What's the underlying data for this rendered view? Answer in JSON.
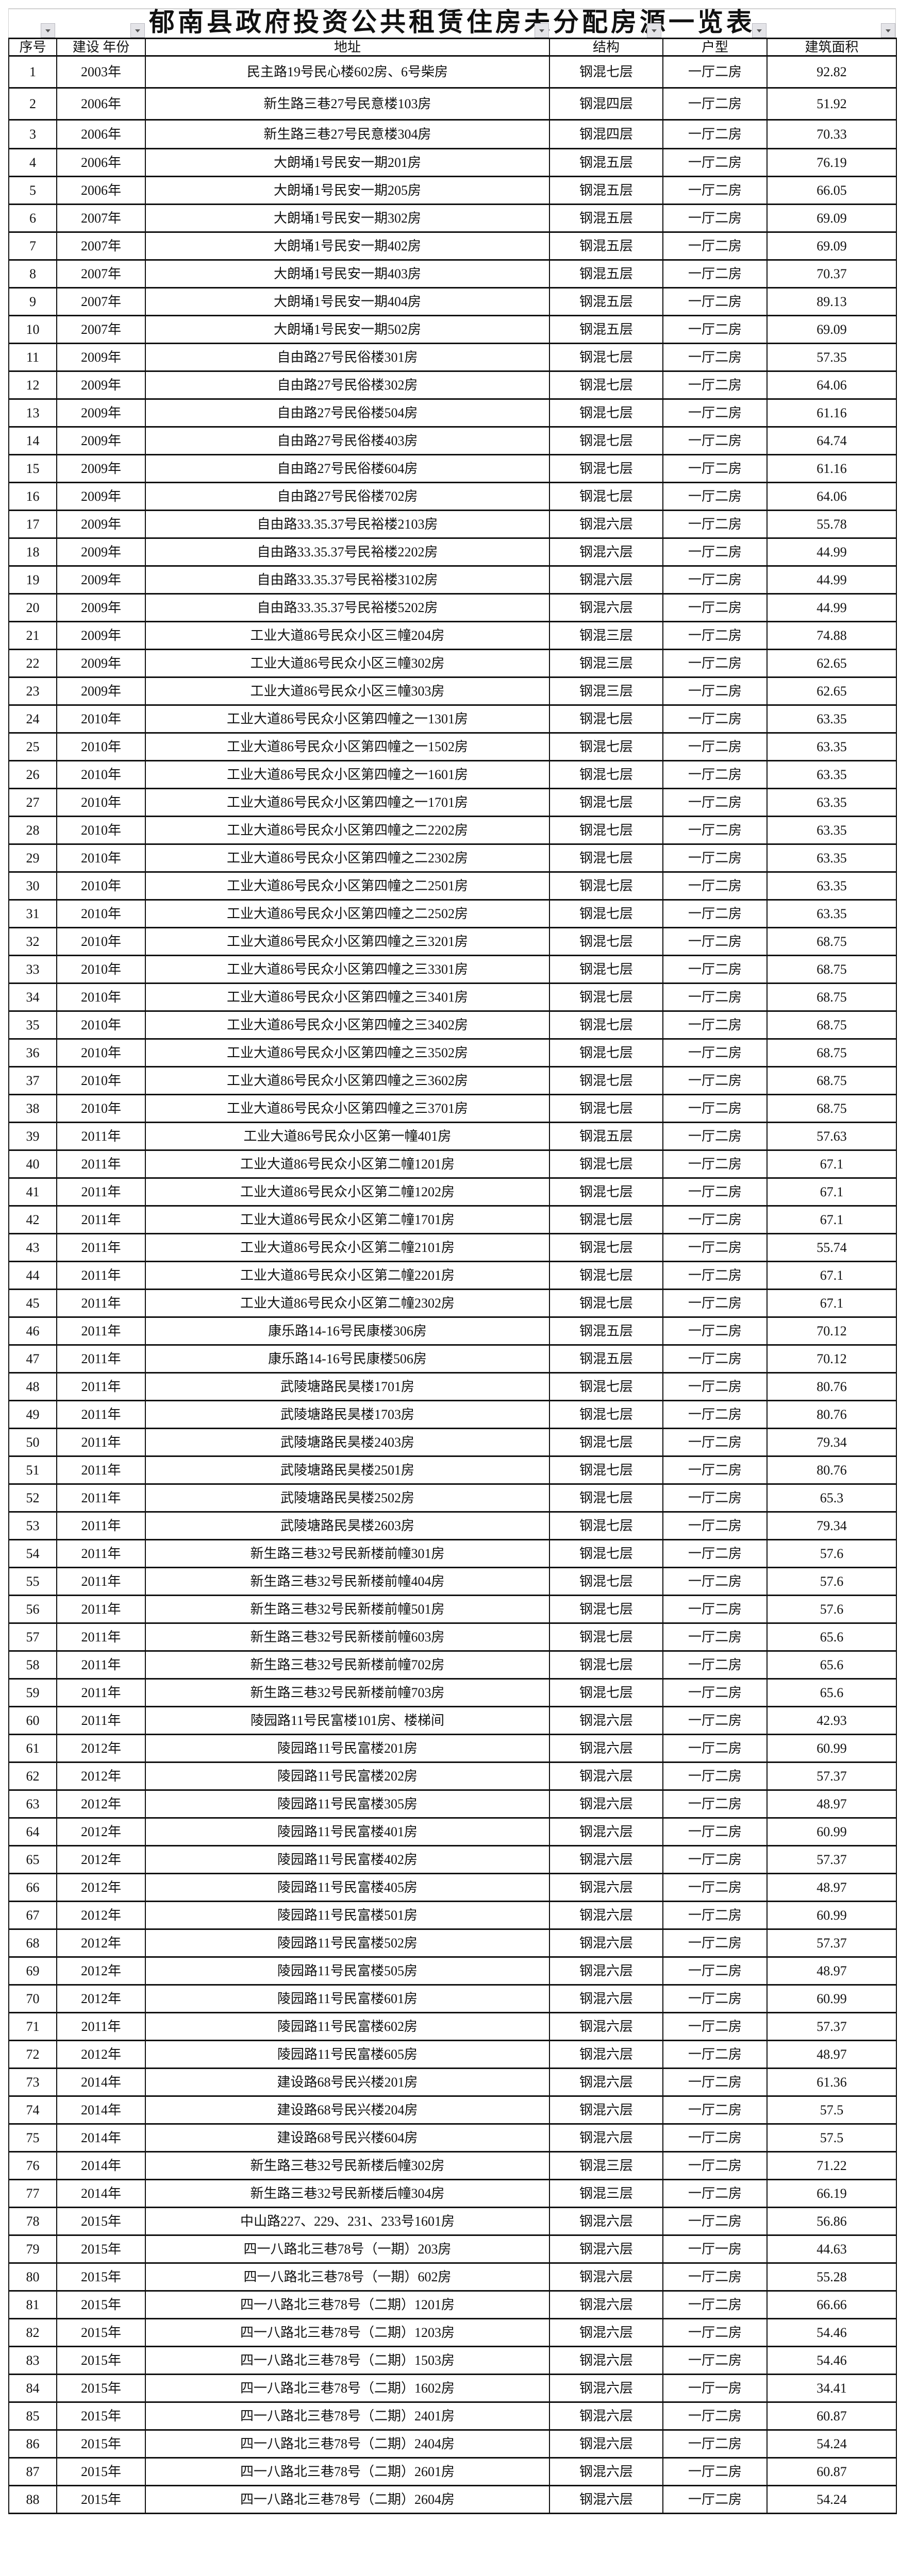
{
  "title": "郁南县政府投资公共租赁住房未分配房源一览表",
  "filter_icon": "dropdown-arrow-icon",
  "headers": [
    "序号",
    "建设 年份",
    "地址",
    "结构",
    "户型",
    "建筑面积"
  ],
  "rows": [
    [
      "1",
      "2003年",
      "民主路19号民心楼602房、6号柴房",
      "钢混七层",
      "一厅二房",
      "92.82"
    ],
    [
      "2",
      "2006年",
      "新生路三巷27号民意楼103房",
      "钢混四层",
      "一厅二房",
      "51.92"
    ],
    [
      "3",
      "2006年",
      "新生路三巷27号民意楼304房",
      "钢混四层",
      "一厅二房",
      "70.33"
    ],
    [
      "4",
      "2006年",
      "大朗埇1号民安一期201房",
      "钢混五层",
      "一厅二房",
      "76.19"
    ],
    [
      "5",
      "2006年",
      "大朗埇1号民安一期205房",
      "钢混五层",
      "一厅二房",
      "66.05"
    ],
    [
      "6",
      "2007年",
      "大朗埇1号民安一期302房",
      "钢混五层",
      "一厅二房",
      "69.09"
    ],
    [
      "7",
      "2007年",
      "大朗埇1号民安一期402房",
      "钢混五层",
      "一厅二房",
      "69.09"
    ],
    [
      "8",
      "2007年",
      "大朗埇1号民安一期403房",
      "钢混五层",
      "一厅二房",
      "70.37"
    ],
    [
      "9",
      "2007年",
      "大朗埇1号民安一期404房",
      "钢混五层",
      "一厅二房",
      "89.13"
    ],
    [
      "10",
      "2007年",
      "大朗埇1号民安一期502房",
      "钢混五层",
      "一厅二房",
      "69.09"
    ],
    [
      "11",
      "2009年",
      "自由路27号民俗楼301房",
      "钢混七层",
      "一厅二房",
      "57.35"
    ],
    [
      "12",
      "2009年",
      "自由路27号民俗楼302房",
      "钢混七层",
      "一厅二房",
      "64.06"
    ],
    [
      "13",
      "2009年",
      "自由路27号民俗楼504房",
      "钢混七层",
      "一厅二房",
      "61.16"
    ],
    [
      "14",
      "2009年",
      "自由路27号民俗楼403房",
      "钢混七层",
      "一厅二房",
      "64.74"
    ],
    [
      "15",
      "2009年",
      "自由路27号民俗楼604房",
      "钢混七层",
      "一厅二房",
      "61.16"
    ],
    [
      "16",
      "2009年",
      "自由路27号民俗楼702房",
      "钢混七层",
      "一厅二房",
      "64.06"
    ],
    [
      "17",
      "2009年",
      "自由路33.35.37号民裕楼2103房",
      "钢混六层",
      "一厅二房",
      "55.78"
    ],
    [
      "18",
      "2009年",
      "自由路33.35.37号民裕楼2202房",
      "钢混六层",
      "一厅二房",
      "44.99"
    ],
    [
      "19",
      "2009年",
      "自由路33.35.37号民裕楼3102房",
      "钢混六层",
      "一厅二房",
      "44.99"
    ],
    [
      "20",
      "2009年",
      "自由路33.35.37号民裕楼5202房",
      "钢混六层",
      "一厅二房",
      "44.99"
    ],
    [
      "21",
      "2009年",
      "工业大道86号民众小区三幢204房",
      "钢混三层",
      "一厅二房",
      "74.88"
    ],
    [
      "22",
      "2009年",
      "工业大道86号民众小区三幢302房",
      "钢混三层",
      "一厅二房",
      "62.65"
    ],
    [
      "23",
      "2009年",
      "工业大道86号民众小区三幢303房",
      "钢混三层",
      "一厅二房",
      "62.65"
    ],
    [
      "24",
      "2010年",
      "工业大道86号民众小区第四幢之一1301房",
      "钢混七层",
      "一厅二房",
      "63.35"
    ],
    [
      "25",
      "2010年",
      "工业大道86号民众小区第四幢之一1502房",
      "钢混七层",
      "一厅二房",
      "63.35"
    ],
    [
      "26",
      "2010年",
      "工业大道86号民众小区第四幢之一1601房",
      "钢混七层",
      "一厅二房",
      "63.35"
    ],
    [
      "27",
      "2010年",
      "工业大道86号民众小区第四幢之一1701房",
      "钢混七层",
      "一厅二房",
      "63.35"
    ],
    [
      "28",
      "2010年",
      "工业大道86号民众小区第四幢之二2202房",
      "钢混七层",
      "一厅二房",
      "63.35"
    ],
    [
      "29",
      "2010年",
      "工业大道86号民众小区第四幢之二2302房",
      "钢混七层",
      "一厅二房",
      "63.35"
    ],
    [
      "30",
      "2010年",
      "工业大道86号民众小区第四幢之二2501房",
      "钢混七层",
      "一厅二房",
      "63.35"
    ],
    [
      "31",
      "2010年",
      "工业大道86号民众小区第四幢之二2502房",
      "钢混七层",
      "一厅二房",
      "63.35"
    ],
    [
      "32",
      "2010年",
      "工业大道86号民众小区第四幢之三3201房",
      "钢混七层",
      "一厅二房",
      "68.75"
    ],
    [
      "33",
      "2010年",
      "工业大道86号民众小区第四幢之三3301房",
      "钢混七层",
      "一厅二房",
      "68.75"
    ],
    [
      "34",
      "2010年",
      "工业大道86号民众小区第四幢之三3401房",
      "钢混七层",
      "一厅二房",
      "68.75"
    ],
    [
      "35",
      "2010年",
      "工业大道86号民众小区第四幢之三3402房",
      "钢混七层",
      "一厅二房",
      "68.75"
    ],
    [
      "36",
      "2010年",
      "工业大道86号民众小区第四幢之三3502房",
      "钢混七层",
      "一厅二房",
      "68.75"
    ],
    [
      "37",
      "2010年",
      "工业大道86号民众小区第四幢之三3602房",
      "钢混七层",
      "一厅二房",
      "68.75"
    ],
    [
      "38",
      "2010年",
      "工业大道86号民众小区第四幢之三3701房",
      "钢混七层",
      "一厅二房",
      "68.75"
    ],
    [
      "39",
      "2011年",
      "工业大道86号民众小区第一幢401房",
      "钢混五层",
      "一厅二房",
      "57.63"
    ],
    [
      "40",
      "2011年",
      "工业大道86号民众小区第二幢1201房",
      "钢混七层",
      "一厅二房",
      "67.1"
    ],
    [
      "41",
      "2011年",
      "工业大道86号民众小区第二幢1202房",
      "钢混七层",
      "一厅二房",
      "67.1"
    ],
    [
      "42",
      "2011年",
      "工业大道86号民众小区第二幢1701房",
      "钢混七层",
      "一厅二房",
      "67.1"
    ],
    [
      "43",
      "2011年",
      "工业大道86号民众小区第二幢2101房",
      "钢混七层",
      "一厅二房",
      "55.74"
    ],
    [
      "44",
      "2011年",
      "工业大道86号民众小区第二幢2201房",
      "钢混七层",
      "一厅二房",
      "67.1"
    ],
    [
      "45",
      "2011年",
      "工业大道86号民众小区第二幢2302房",
      "钢混七层",
      "一厅二房",
      "67.1"
    ],
    [
      "46",
      "2011年",
      "康乐路14-16号民康楼306房",
      "钢混五层",
      "一厅二房",
      "70.12"
    ],
    [
      "47",
      "2011年",
      "康乐路14-16号民康楼506房",
      "钢混五层",
      "一厅二房",
      "70.12"
    ],
    [
      "48",
      "2011年",
      "武陵塘路民昊楼1701房",
      "钢混七层",
      "一厅二房",
      "80.76"
    ],
    [
      "49",
      "2011年",
      "武陵塘路民昊楼1703房",
      "钢混七层",
      "一厅二房",
      "80.76"
    ],
    [
      "50",
      "2011年",
      "武陵塘路民昊楼2403房",
      "钢混七层",
      "一厅二房",
      "79.34"
    ],
    [
      "51",
      "2011年",
      "武陵塘路民昊楼2501房",
      "钢混七层",
      "一厅二房",
      "80.76"
    ],
    [
      "52",
      "2011年",
      "武陵塘路民昊楼2502房",
      "钢混七层",
      "一厅二房",
      "65.3"
    ],
    [
      "53",
      "2011年",
      "武陵塘路民昊楼2603房",
      "钢混七层",
      "一厅二房",
      "79.34"
    ],
    [
      "54",
      "2011年",
      "新生路三巷32号民新楼前幢301房",
      "钢混七层",
      "一厅二房",
      "57.6"
    ],
    [
      "55",
      "2011年",
      "新生路三巷32号民新楼前幢404房",
      "钢混七层",
      "一厅二房",
      "57.6"
    ],
    [
      "56",
      "2011年",
      "新生路三巷32号民新楼前幢501房",
      "钢混七层",
      "一厅二房",
      "57.6"
    ],
    [
      "57",
      "2011年",
      "新生路三巷32号民新楼前幢603房",
      "钢混七层",
      "一厅二房",
      "65.6"
    ],
    [
      "58",
      "2011年",
      "新生路三巷32号民新楼前幢702房",
      "钢混七层",
      "一厅二房",
      "65.6"
    ],
    [
      "59",
      "2011年",
      "新生路三巷32号民新楼前幢703房",
      "钢混七层",
      "一厅二房",
      "65.6"
    ],
    [
      "60",
      "2011年",
      "陵园路11号民富楼101房、楼梯间",
      "钢混六层",
      "一厅二房",
      "42.93"
    ],
    [
      "61",
      "2012年",
      "陵园路11号民富楼201房",
      "钢混六层",
      "一厅二房",
      "60.99"
    ],
    [
      "62",
      "2012年",
      "陵园路11号民富楼202房",
      "钢混六层",
      "一厅二房",
      "57.37"
    ],
    [
      "63",
      "2012年",
      "陵园路11号民富楼305房",
      "钢混六层",
      "一厅二房",
      "48.97"
    ],
    [
      "64",
      "2012年",
      "陵园路11号民富楼401房",
      "钢混六层",
      "一厅二房",
      "60.99"
    ],
    [
      "65",
      "2012年",
      "陵园路11号民富楼402房",
      "钢混六层",
      "一厅二房",
      "57.37"
    ],
    [
      "66",
      "2012年",
      "陵园路11号民富楼405房",
      "钢混六层",
      "一厅二房",
      "48.97"
    ],
    [
      "67",
      "2012年",
      "陵园路11号民富楼501房",
      "钢混六层",
      "一厅二房",
      "60.99"
    ],
    [
      "68",
      "2012年",
      "陵园路11号民富楼502房",
      "钢混六层",
      "一厅二房",
      "57.37"
    ],
    [
      "69",
      "2012年",
      "陵园路11号民富楼505房",
      "钢混六层",
      "一厅二房",
      "48.97"
    ],
    [
      "70",
      "2012年",
      "陵园路11号民富楼601房",
      "钢混六层",
      "一厅二房",
      "60.99"
    ],
    [
      "71",
      "2011年",
      "陵园路11号民富楼602房",
      "钢混六层",
      "一厅二房",
      "57.37"
    ],
    [
      "72",
      "2012年",
      "陵园路11号民富楼605房",
      "钢混六层",
      "一厅二房",
      "48.97"
    ],
    [
      "73",
      "2014年",
      "建设路68号民兴楼201房",
      "钢混六层",
      "一厅二房",
      "61.36"
    ],
    [
      "74",
      "2014年",
      "建设路68号民兴楼204房",
      "钢混六层",
      "一厅二房",
      "57.5"
    ],
    [
      "75",
      "2014年",
      "建设路68号民兴楼604房",
      "钢混六层",
      "一厅二房",
      "57.5"
    ],
    [
      "76",
      "2014年",
      "新生路三巷32号民新楼后幢302房",
      "钢混三层",
      "一厅二房",
      "71.22"
    ],
    [
      "77",
      "2014年",
      "新生路三巷32号民新楼后幢304房",
      "钢混三层",
      "一厅二房",
      "66.19"
    ],
    [
      "78",
      "2015年",
      "中山路227、229、231、233号1601房",
      "钢混六层",
      "一厅二房",
      "56.86"
    ],
    [
      "79",
      "2015年",
      "四一八路北三巷78号（一期）203房",
      "钢混六层",
      "一厅一房",
      "44.63"
    ],
    [
      "80",
      "2015年",
      "四一八路北三巷78号（一期）602房",
      "钢混六层",
      "一厅二房",
      "55.28"
    ],
    [
      "81",
      "2015年",
      "四一八路北三巷78号（二期）1201房",
      "钢混六层",
      "一厅二房",
      "66.66"
    ],
    [
      "82",
      "2015年",
      "四一八路北三巷78号（二期）1203房",
      "钢混六层",
      "一厅二房",
      "54.46"
    ],
    [
      "83",
      "2015年",
      "四一八路北三巷78号（二期）1503房",
      "钢混六层",
      "一厅二房",
      "54.46"
    ],
    [
      "84",
      "2015年",
      "四一八路北三巷78号（二期）1602房",
      "钢混六层",
      "一厅一房",
      "34.41"
    ],
    [
      "85",
      "2015年",
      "四一八路北三巷78号（二期）2401房",
      "钢混六层",
      "一厅二房",
      "60.87"
    ],
    [
      "86",
      "2015年",
      "四一八路北三巷78号（二期）2404房",
      "钢混六层",
      "一厅二房",
      "54.24"
    ],
    [
      "87",
      "2015年",
      "四一八路北三巷78号（二期）2601房",
      "钢混六层",
      "一厅二房",
      "60.87"
    ],
    [
      "88",
      "2015年",
      "四一八路北三巷78号（二期）2604房",
      "钢混六层",
      "一厅二房",
      "54.24"
    ]
  ]
}
